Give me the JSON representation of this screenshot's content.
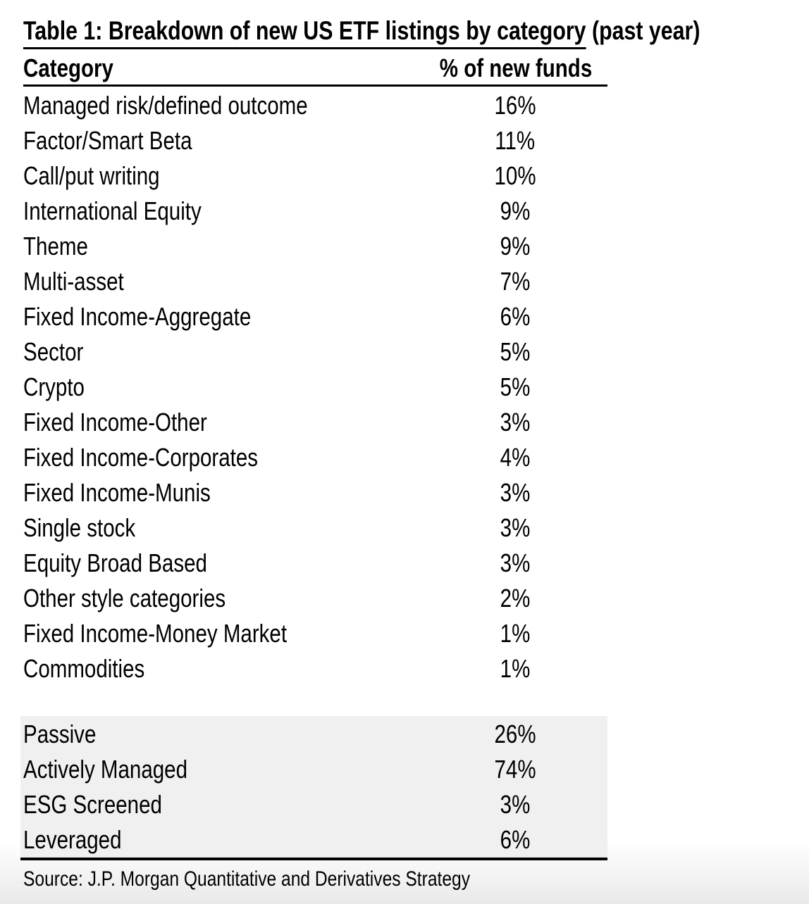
{
  "chart_data": {
    "type": "table",
    "title": "Table 1: Breakdown of new US ETF listings by category (past year)",
    "title_underlined_part": "Table 1: Breakdown of new US ETF listings by category",
    "title_plain_part": " (past year)",
    "columns": [
      "Category",
      "% of new funds"
    ],
    "rows": [
      {
        "category": "Managed risk/defined outcome",
        "percent_of_new_funds": "16%"
      },
      {
        "category": "Factor/Smart Beta",
        "percent_of_new_funds": "11%"
      },
      {
        "category": "Call/put writing",
        "percent_of_new_funds": "10%"
      },
      {
        "category": "International Equity",
        "percent_of_new_funds": "9%"
      },
      {
        "category": "Theme",
        "percent_of_new_funds": "9%"
      },
      {
        "category": "Multi-asset",
        "percent_of_new_funds": "7%"
      },
      {
        "category": "Fixed Income-Aggregate",
        "percent_of_new_funds": "6%"
      },
      {
        "category": "Sector",
        "percent_of_new_funds": "5%"
      },
      {
        "category": "Crypto",
        "percent_of_new_funds": "5%"
      },
      {
        "category": "Fixed Income-Other",
        "percent_of_new_funds": "3%"
      },
      {
        "category": "Fixed Income-Corporates",
        "percent_of_new_funds": "4%"
      },
      {
        "category": "Fixed Income-Munis",
        "percent_of_new_funds": "3%"
      },
      {
        "category": "Single stock",
        "percent_of_new_funds": "3%"
      },
      {
        "category": "Equity Broad Based",
        "percent_of_new_funds": "3%"
      },
      {
        "category": "Other style categories",
        "percent_of_new_funds": "2%"
      },
      {
        "category": "Fixed Income-Money Market",
        "percent_of_new_funds": "1%"
      },
      {
        "category": "Commodities",
        "percent_of_new_funds": "1%"
      }
    ],
    "summary_rows": [
      {
        "category": "Passive",
        "percent_of_new_funds": "26%"
      },
      {
        "category": "Actively Managed",
        "percent_of_new_funds": "74%"
      },
      {
        "category": "ESG Screened",
        "percent_of_new_funds": "3%"
      },
      {
        "category": "Leveraged",
        "percent_of_new_funds": "6%"
      }
    ],
    "source": "Source: J.P. Morgan Quantitative and Derivatives Strategy",
    "legend_position": "none",
    "grid": "off"
  },
  "style": {
    "text_color": "#000000",
    "rule_color": "#000000",
    "summary_background": "#f0f0f0",
    "bottom_fade_color": "#e9e9e9",
    "page_background": "#ffffff"
  }
}
